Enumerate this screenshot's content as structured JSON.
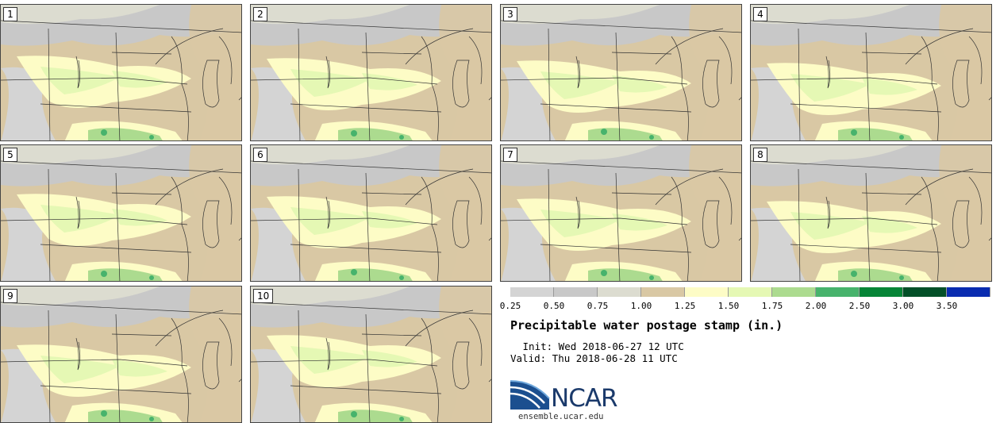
{
  "title": "Precipitable water postage stamp (in.)",
  "init": " Init: Wed 2018-06-27 12 UTC",
  "valid": "Valid: Thu 2018-06-28 11 UTC",
  "logo": {
    "text": "NCAR",
    "url": "ensemble.ucar.edu"
  },
  "colorbar": {
    "ticks": [
      "0.25",
      "0.50",
      "0.75",
      "1.00",
      "1.25",
      "1.50",
      "1.75",
      "2.00",
      "2.50",
      "3.00",
      "3.50"
    ],
    "colors": [
      "#d4d4d4",
      "#c8c8c8",
      "#dcdcd0",
      "#d9c8a4",
      "#fdfcc6",
      "#e5f8b4",
      "#acdb8f",
      "#47b36c",
      "#068537",
      "#035028",
      "#0a2cb0"
    ]
  },
  "panels": [
    {
      "label": "1"
    },
    {
      "label": "2"
    },
    {
      "label": "3"
    },
    {
      "label": "4"
    },
    {
      "label": "5"
    },
    {
      "label": "6"
    },
    {
      "label": "7"
    },
    {
      "label": "8"
    },
    {
      "label": "9"
    },
    {
      "label": "10"
    }
  ]
}
